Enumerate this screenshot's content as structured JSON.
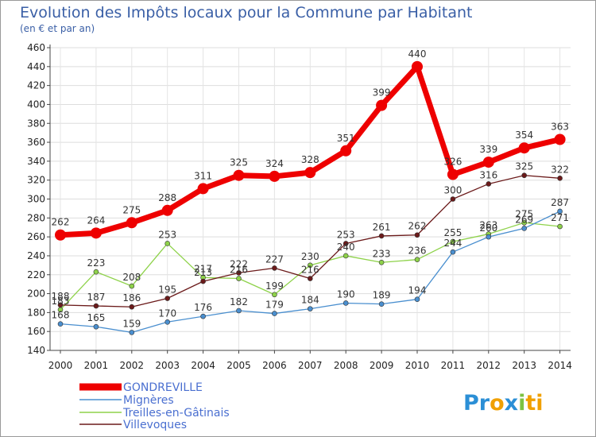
{
  "chart_data": {
    "type": "line",
    "title": "Evolution des Impôts locaux pour la Commune par Habitant",
    "subtitle": "(en € et par an)",
    "categories": [
      "2000",
      "2001",
      "2002",
      "2003",
      "2004",
      "2005",
      "2006",
      "2007",
      "2008",
      "2009",
      "2010",
      "2011",
      "2012",
      "2013",
      "2014"
    ],
    "ylim": [
      140,
      460
    ],
    "yticks": [
      140,
      160,
      180,
      200,
      220,
      240,
      260,
      280,
      300,
      320,
      340,
      360,
      380,
      400,
      420,
      440,
      460
    ],
    "grid": true,
    "legend_position": "bottom-left",
    "series": [
      {
        "name": "GONDREVILLE",
        "color": "#ee0000",
        "values": [
          262,
          264,
          275,
          288,
          311,
          325,
          324,
          328,
          351,
          399,
          440,
          326,
          339,
          354,
          363
        ],
        "labels": [
          "262",
          "264",
          "275",
          "288",
          "311",
          "325",
          "324",
          "328",
          "351",
          "399",
          "440",
          "326",
          "339",
          "354",
          "363"
        ]
      },
      {
        "name": "Mignères",
        "color": "#4a8fcf",
        "values": [
          168,
          165,
          159,
          170,
          176,
          182,
          179,
          184,
          190,
          189,
          194,
          244,
          260,
          269,
          287
        ],
        "labels": [
          "168",
          "165",
          "159",
          "170",
          "176",
          "182",
          "179",
          "184",
          "190",
          "189",
          "194",
          "244",
          "260",
          "269",
          "287"
        ]
      },
      {
        "name": "Treilles-en-Gâtinais",
        "color": "#8ed24a",
        "values": [
          183,
          223,
          208,
          253,
          217,
          216,
          199,
          230,
          240,
          233,
          236,
          255,
          263,
          275,
          271
        ],
        "labels": [
          "183",
          "223",
          "208",
          "253",
          "217",
          "216",
          "199",
          "230",
          "240",
          "233",
          "236",
          "255",
          "263",
          "275",
          "271"
        ]
      },
      {
        "name": "Villevoques",
        "color": "#6b1a1a",
        "values": [
          188,
          187,
          186,
          195,
          213,
          222,
          227,
          216,
          253,
          261,
          262,
          300,
          316,
          325,
          322
        ],
        "labels": [
          "188",
          "187",
          "186",
          "195",
          "213",
          "222",
          "227",
          "216",
          "253",
          "261",
          "262",
          "300",
          "316",
          "325",
          "322"
        ]
      }
    ]
  },
  "logo": {
    "parts": [
      "Pr",
      "o",
      "x",
      "i",
      "ti"
    ],
    "colors": [
      "#2b8fd6",
      "#f0a000",
      "#2b8fd6",
      "#7cc242",
      "#f0a000"
    ]
  }
}
